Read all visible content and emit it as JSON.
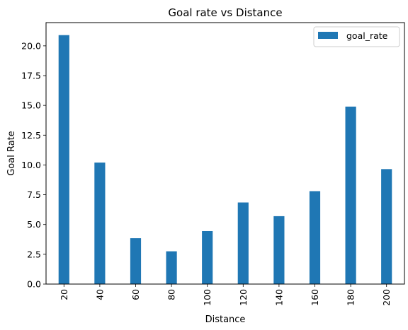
{
  "chart_data": {
    "type": "bar",
    "title": "Goal rate vs Distance",
    "xlabel": "Distance",
    "ylabel": "Goal Rate",
    "categories": [
      "20",
      "40",
      "60",
      "80",
      "100",
      "120",
      "140",
      "160",
      "180",
      "200"
    ],
    "series": [
      {
        "name": "goal_rate",
        "color": "#1f77b4",
        "values": [
          20.9,
          10.2,
          3.85,
          2.75,
          4.45,
          6.85,
          5.7,
          7.8,
          14.9,
          9.65
        ]
      }
    ],
    "ylim": [
      0,
      21.95
    ],
    "yticks": [
      "0.0",
      "2.5",
      "5.0",
      "7.5",
      "10.0",
      "12.5",
      "15.0",
      "17.5",
      "20.0"
    ],
    "grid": false,
    "legend": "top-right",
    "tick_rotation": 90
  }
}
